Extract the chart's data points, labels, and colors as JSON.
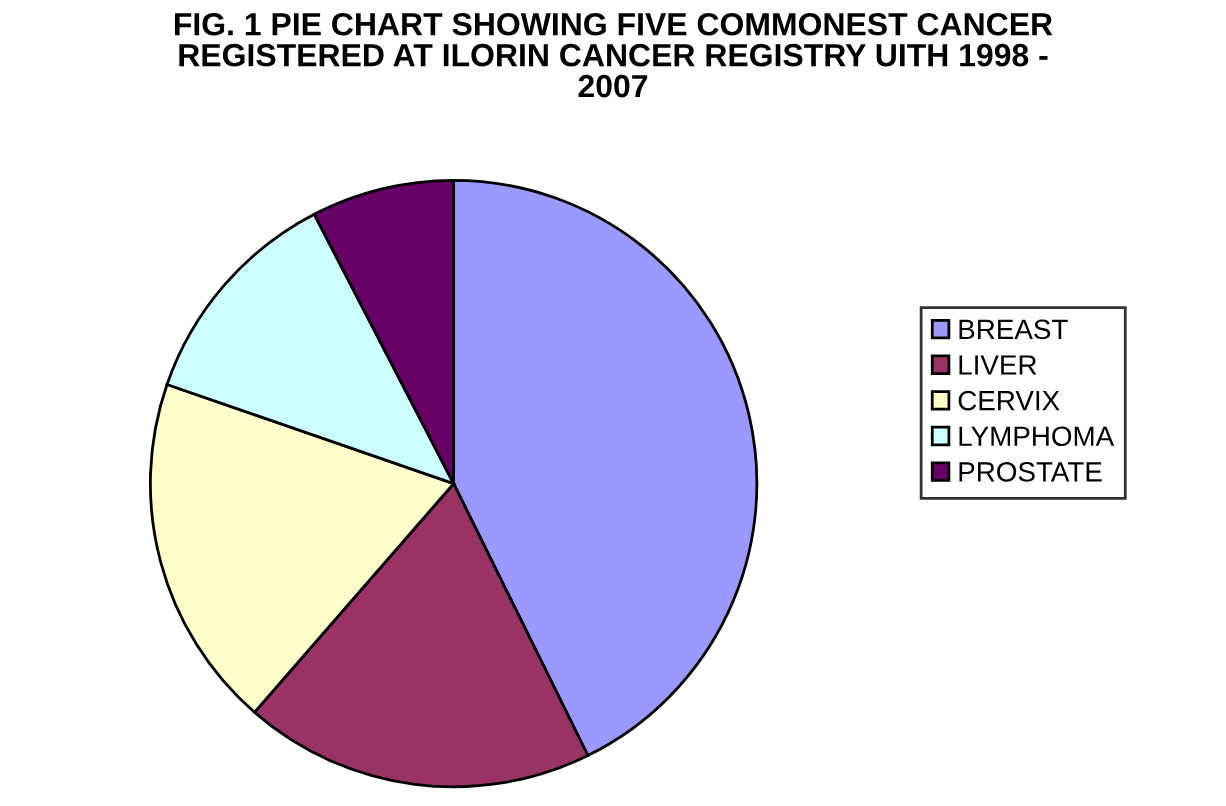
{
  "chart_data": {
    "type": "pie",
    "title": "FIG. 1 PIE CHART SHOWING FIVE COMMONEST CANCER\nREGISTERED AT ILORIN CANCER REGISTRY UITH 1998 -\n2007",
    "categories": [
      "BREAST",
      "LIVER",
      "CERVIX",
      "LYMPHOMA",
      "PROSTATE"
    ],
    "values": [
      42.7,
      18.7,
      18.9,
      12.1,
      7.6
    ],
    "colors": [
      "#9999ff",
      "#993366",
      "#ffffcc",
      "#ccffff",
      "#660066"
    ],
    "legend": "right"
  }
}
